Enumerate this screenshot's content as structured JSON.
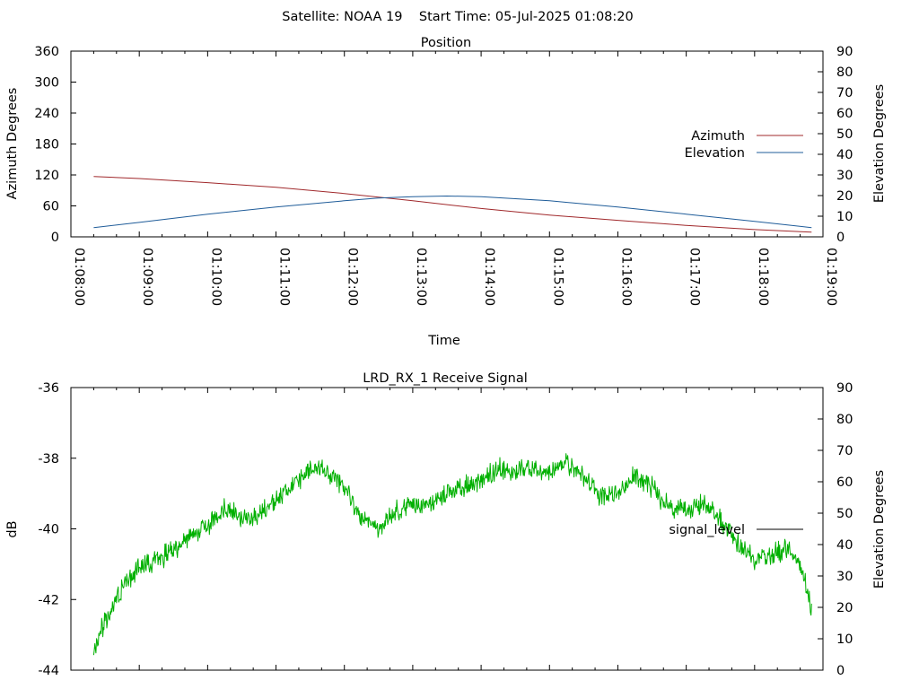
{
  "figure_title": "Satellite: NOAA 19    Start Time: 05-Jul-2025 01:08:20",
  "chart_data": [
    {
      "type": "line",
      "title": "Position",
      "xlabel": "Time",
      "ylabel": "Azimuth Degrees",
      "y2label": "Elevation Degrees",
      "xlim": [
        "01:08:00",
        "01:19:00"
      ],
      "ylim": [
        0,
        360
      ],
      "y2lim": [
        0,
        90
      ],
      "grid": false,
      "legend_position": "right",
      "x_ticks": [
        "01:08:00",
        "01:09:00",
        "01:10:00",
        "01:11:00",
        "01:12:00",
        "01:13:00",
        "01:14:00",
        "01:15:00",
        "01:16:00",
        "01:17:00",
        "01:18:00",
        "01:19:00"
      ],
      "y_ticks": [
        0,
        60,
        120,
        180,
        240,
        300,
        360
      ],
      "y2_ticks": [
        0,
        10,
        20,
        30,
        40,
        50,
        60,
        70,
        80,
        90
      ],
      "series": [
        {
          "name": "Azimuth",
          "axis": "left",
          "color": "#a0282b",
          "x": [
            "01:08:20",
            "01:09:00",
            "01:10:00",
            "01:11:00",
            "01:12:00",
            "01:13:00",
            "01:14:00",
            "01:15:00",
            "01:16:00",
            "01:17:00",
            "01:18:00",
            "01:18:50"
          ],
          "values": [
            117,
            113,
            105,
            96,
            84,
            70,
            55,
            42,
            32,
            22,
            14,
            9
          ]
        },
        {
          "name": "Elevation",
          "axis": "right",
          "color": "#1f5c99",
          "x": [
            "01:08:20",
            "01:09:00",
            "01:10:00",
            "01:11:00",
            "01:12:00",
            "01:12:30",
            "01:13:00",
            "01:13:30",
            "01:14:00",
            "01:15:00",
            "01:16:00",
            "01:17:00",
            "01:18:00",
            "01:18:50"
          ],
          "values": [
            4.5,
            7,
            11,
            14.5,
            17.5,
            18.8,
            19.5,
            19.8,
            19.5,
            17.5,
            14.5,
            11,
            7.5,
            4.5
          ]
        }
      ]
    },
    {
      "type": "line",
      "title": "LRD_RX_1 Receive Signal",
      "xlabel": "",
      "ylabel": "dB",
      "y2label": "Elevation Degrees",
      "xlim": [
        "01:08:00",
        "01:19:00"
      ],
      "ylim": [
        -44,
        -36
      ],
      "y2lim": [
        0,
        90
      ],
      "grid": false,
      "legend_position": "right",
      "y_ticks": [
        -44,
        -42,
        -40,
        -38,
        -36
      ],
      "y2_ticks": [
        0,
        10,
        20,
        30,
        40,
        50,
        60,
        70,
        80,
        90
      ],
      "series": [
        {
          "name": "signal_level",
          "axis": "left",
          "color": "#00b000",
          "legend_color": "#000000",
          "x": [
            "01:08:20",
            "01:08:30",
            "01:08:45",
            "01:09:00",
            "01:09:15",
            "01:09:30",
            "01:10:00",
            "01:10:15",
            "01:10:30",
            "01:10:45",
            "01:11:00",
            "01:11:20",
            "01:11:30",
            "01:11:45",
            "01:12:00",
            "01:12:15",
            "01:12:30",
            "01:12:45",
            "01:13:00",
            "01:13:15",
            "01:13:30",
            "01:13:45",
            "01:14:00",
            "01:14:15",
            "01:14:30",
            "01:14:45",
            "01:15:00",
            "01:15:15",
            "01:15:30",
            "01:15:45",
            "01:16:00",
            "01:16:15",
            "01:16:30",
            "01:16:45",
            "01:17:00",
            "01:17:15",
            "01:17:30",
            "01:17:45",
            "01:18:00",
            "01:18:15",
            "01:18:30",
            "01:18:40",
            "01:18:45",
            "01:18:50"
          ],
          "values": [
            -43.4,
            -42.6,
            -41.7,
            -41.1,
            -40.9,
            -40.6,
            -39.9,
            -39.4,
            -39.7,
            -39.6,
            -39.2,
            -38.6,
            -38.3,
            -38.4,
            -38.8,
            -39.7,
            -40.0,
            -39.5,
            -39.3,
            -39.4,
            -39.0,
            -38.8,
            -38.6,
            -38.3,
            -38.4,
            -38.2,
            -38.4,
            -38.1,
            -38.5,
            -39.1,
            -39.0,
            -38.5,
            -38.8,
            -39.4,
            -39.5,
            -39.3,
            -39.7,
            -40.4,
            -40.9,
            -40.7,
            -40.6,
            -41.0,
            -41.6,
            -42.3
          ]
        }
      ]
    }
  ]
}
